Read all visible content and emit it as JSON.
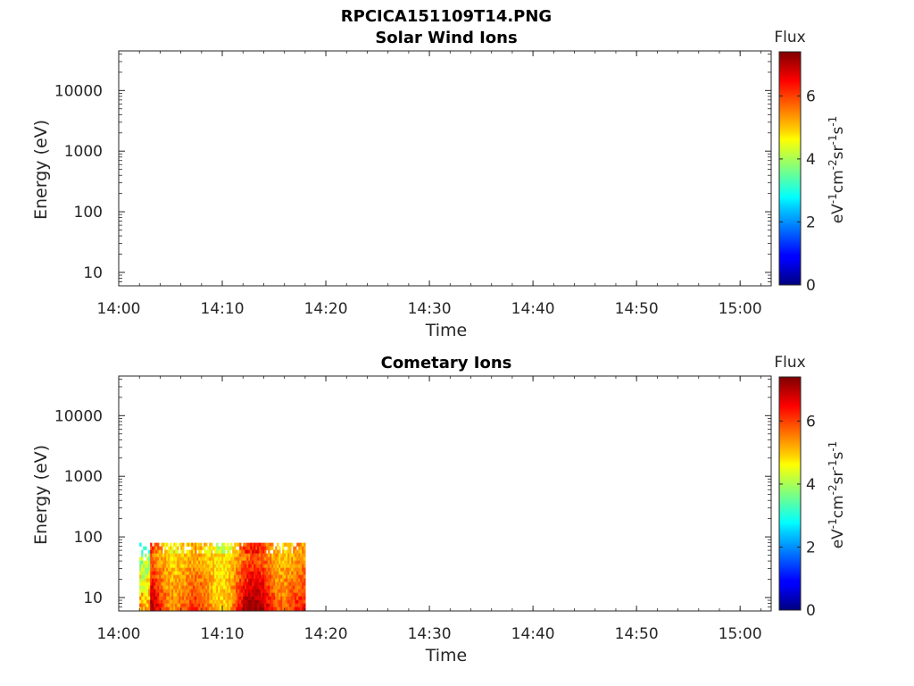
{
  "figure": {
    "title": "RPCICA151109T14.PNG"
  },
  "colorbar": {
    "label": "Flux",
    "unit_prefix": "eV",
    "unit_text": "eV-1cm-2sr-1s-1",
    "ticks": [
      "0",
      "2",
      "4",
      "6"
    ],
    "range": [
      0,
      7.4
    ],
    "colormap": "jet"
  },
  "chart_data": [
    {
      "type": "heatmap",
      "title": "Solar Wind Ions",
      "xlabel": "Time",
      "ylabel": "Energy (eV)",
      "x_ticks": [
        "14:00",
        "14:10",
        "14:20",
        "14:30",
        "14:40",
        "14:50",
        "15:00"
      ],
      "y_ticks": [
        "10",
        "100",
        "1000",
        "10000"
      ],
      "ylim": [
        6,
        45000
      ],
      "y_scale": "log",
      "xlim": [
        "14:00",
        "15:03"
      ],
      "data_blocks": []
    },
    {
      "type": "heatmap",
      "title": "Cometary Ions",
      "xlabel": "Time",
      "ylabel": "Energy (eV)",
      "x_ticks": [
        "14:00",
        "14:10",
        "14:20",
        "14:30",
        "14:40",
        "14:50",
        "15:00"
      ],
      "y_ticks": [
        "10",
        "100",
        "1000",
        "10000"
      ],
      "ylim": [
        6,
        45000
      ],
      "y_scale": "log",
      "xlim": [
        "14:00",
        "15:03"
      ],
      "data_blocks": [
        {
          "t_start": "14:02",
          "t_end": "14:18",
          "e_min": 6,
          "e_max": 80,
          "flux_low": 3,
          "flux_high": 7
        }
      ]
    }
  ]
}
